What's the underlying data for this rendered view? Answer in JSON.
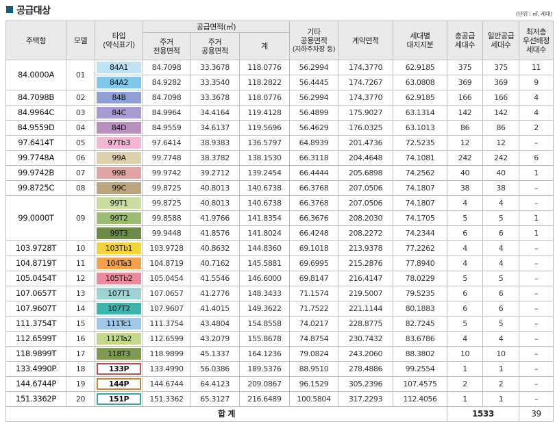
{
  "title": "공급대상",
  "unit_note": "(단위 : ㎡, 세대)",
  "headers": {
    "housing_type": "주택형",
    "model": "모델",
    "type_abbrev_l1": "타입",
    "type_abbrev_l2": "(약식표기)",
    "supply_area": "공급면적(㎡)",
    "excl_l1": "주거",
    "excl_l2": "전용면적",
    "shared_l1": "주거",
    "shared_l2": "공용면적",
    "total": "계",
    "other_l1": "기타",
    "other_l2": "공용면적",
    "other_l3": "(지하주차장 등)",
    "contract": "계약면적",
    "land_l1": "세대별",
    "land_l2": "대지지분",
    "total_units_l1": "총공급",
    "total_units_l2": "세대수",
    "general_l1": "일반공급",
    "general_l2": "세대수",
    "lowest_l1": "최저층",
    "lowest_l2": "우선배정",
    "lowest_l3": "세대수"
  },
  "groups": [
    {
      "type": "84.0000A",
      "model": "01",
      "rows": [
        {
          "abbr": "84A1",
          "color": "#bfe3f5",
          "excl": "84.7098",
          "shared": "33.3678",
          "total": "118.0776",
          "other": "56.2994",
          "contract": "174.3770",
          "land": "62.9185",
          "total_units": "375",
          "general": "375",
          "lowest": "11"
        },
        {
          "abbr": "84A2",
          "color": "#80c8ea",
          "excl": "84.9282",
          "shared": "33.3540",
          "total": "118.2822",
          "other": "56.4445",
          "contract": "174.7267",
          "land": "63.0808",
          "total_units": "369",
          "general": "369",
          "lowest": "9"
        }
      ]
    },
    {
      "type": "84.7098B",
      "model": "02",
      "rows": [
        {
          "abbr": "84B",
          "color": "#8ea0d6",
          "excl": "84.7098",
          "shared": "33.3678",
          "total": "118.0776",
          "other": "56.2994",
          "contract": "174.3770",
          "land": "62.9185",
          "total_units": "166",
          "general": "166",
          "lowest": "4"
        }
      ]
    },
    {
      "type": "84.9964C",
      "model": "03",
      "rows": [
        {
          "abbr": "84C",
          "color": "#a89ad2",
          "excl": "84.9964",
          "shared": "34.4164",
          "total": "119.4128",
          "other": "56.4899",
          "contract": "175.9027",
          "land": "63.1314",
          "total_units": "142",
          "general": "142",
          "lowest": "4"
        }
      ]
    },
    {
      "type": "84.9559D",
      "model": "04",
      "rows": [
        {
          "abbr": "84D",
          "color": "#b890bf",
          "excl": "84.9559",
          "shared": "34.6137",
          "total": "119.5696",
          "other": "56.4629",
          "contract": "176.0325",
          "land": "63.1013",
          "total_units": "86",
          "general": "86",
          "lowest": "2"
        }
      ]
    },
    {
      "type": "97.6414T",
      "model": "05",
      "rows": [
        {
          "abbr": "97Tb3",
          "color": "#f4b6d2",
          "excl": "97.6414",
          "shared": "38.9383",
          "total": "136.5797",
          "other": "64.8939",
          "contract": "201.4736",
          "land": "72.5235",
          "total_units": "12",
          "general": "12",
          "lowest": "–"
        }
      ]
    },
    {
      "type": "99.7748A",
      "model": "06",
      "rows": [
        {
          "abbr": "99A",
          "color": "#dcd1aa",
          "excl": "99.7748",
          "shared": "38.3782",
          "total": "138.1530",
          "other": "66.3118",
          "contract": "204.4648",
          "land": "74.1081",
          "total_units": "242",
          "general": "242",
          "lowest": "6"
        }
      ]
    },
    {
      "type": "99.9742B",
      "model": "07",
      "rows": [
        {
          "abbr": "99B",
          "color": "#e0a4a4",
          "excl": "99.9742",
          "shared": "39.2712",
          "total": "139.2454",
          "other": "66.4444",
          "contract": "205.6898",
          "land": "74.2562",
          "total_units": "40",
          "general": "40",
          "lowest": "1"
        }
      ]
    },
    {
      "type": "99.8725C",
      "model": "08",
      "rows": [
        {
          "abbr": "99C",
          "color": "#bba67d",
          "excl": "99.8725",
          "shared": "40.8013",
          "total": "140.6738",
          "other": "66.3768",
          "contract": "207.0506",
          "land": "74.1807",
          "total_units": "38",
          "general": "38",
          "lowest": "–"
        }
      ]
    },
    {
      "type": "99.0000T",
      "model": "09",
      "rows": [
        {
          "abbr": "99T1",
          "color": "#cbdca1",
          "excl": "99.8725",
          "shared": "40.8013",
          "total": "140.6738",
          "other": "66.3768",
          "contract": "207.0506",
          "land": "74.1807",
          "total_units": "4",
          "general": "4",
          "lowest": "–"
        },
        {
          "abbr": "99T2",
          "color": "#9cbd71",
          "excl": "99.8588",
          "shared": "41.9766",
          "total": "141.8354",
          "other": "66.3676",
          "contract": "208.2030",
          "land": "74.1705",
          "total_units": "5",
          "general": "5",
          "lowest": "1"
        },
        {
          "abbr": "99T3",
          "color": "#6d8b48",
          "excl": "99.9448",
          "shared": "41.8576",
          "total": "141.8024",
          "other": "66.4248",
          "contract": "208.2272",
          "land": "74.2344",
          "total_units": "6",
          "general": "6",
          "lowest": "1"
        }
      ]
    },
    {
      "type": "103.9728T",
      "model": "10",
      "rows": [
        {
          "abbr": "103Tb1",
          "color": "#f5d33a",
          "excl": "103.9728",
          "shared": "40.8632",
          "total": "144.8360",
          "other": "69.1018",
          "contract": "213.9378",
          "land": "77.2262",
          "total_units": "4",
          "general": "4",
          "lowest": "–"
        }
      ]
    },
    {
      "type": "104.8719T",
      "model": "11",
      "rows": [
        {
          "abbr": "104Ta3",
          "color": "#f1a24a",
          "excl": "104.8719",
          "shared": "40.7162",
          "total": "145.5881",
          "other": "69.6995",
          "contract": "215.2876",
          "land": "77.8940",
          "total_units": "4",
          "general": "4",
          "lowest": "–"
        }
      ]
    },
    {
      "type": "105.0454T",
      "model": "12",
      "rows": [
        {
          "abbr": "105Tb2",
          "color": "#ea8a9c",
          "excl": "105.0454",
          "shared": "41.5546",
          "total": "146.6000",
          "other": "69.8147",
          "contract": "216.4147",
          "land": "78.0229",
          "total_units": "5",
          "general": "5",
          "lowest": "–"
        }
      ]
    },
    {
      "type": "107.0657T",
      "model": "13",
      "rows": [
        {
          "abbr": "107T1",
          "color": "#9dd3d4",
          "excl": "107.0657",
          "shared": "41.2776",
          "total": "148.3433",
          "other": "71.1574",
          "contract": "219.5007",
          "land": "79.5235",
          "total_units": "6",
          "general": "6",
          "lowest": "–"
        }
      ]
    },
    {
      "type": "107.9607T",
      "model": "14",
      "rows": [
        {
          "abbr": "107T2",
          "color": "#3bb5ad",
          "excl": "107.9607",
          "shared": "41.4015",
          "total": "149.3622",
          "other": "71.7522",
          "contract": "221.1144",
          "land": "80.1883",
          "total_units": "6",
          "general": "6",
          "lowest": "–"
        }
      ]
    },
    {
      "type": "111.3754T",
      "model": "15",
      "rows": [
        {
          "abbr": "111Tc1",
          "color": "#9fc7e9",
          "excl": "111.3754",
          "shared": "43.4804",
          "total": "154.8558",
          "other": "74.0217",
          "contract": "228.8775",
          "land": "82.7245",
          "total_units": "5",
          "general": "5",
          "lowest": "–"
        }
      ]
    },
    {
      "type": "112.6599T",
      "model": "16",
      "rows": [
        {
          "abbr": "112Ta2",
          "color": "#c4d889",
          "excl": "112.6599",
          "shared": "43.2079",
          "total": "155.8678",
          "other": "74.8754",
          "contract": "230.7432",
          "land": "83.6786",
          "total_units": "4",
          "general": "4",
          "lowest": "–"
        }
      ]
    },
    {
      "type": "118.9899T",
      "model": "17",
      "rows": [
        {
          "abbr": "118T3",
          "color": "#7e9a4e",
          "excl": "118.9899",
          "shared": "45.1337",
          "total": "164.1236",
          "other": "79.0824",
          "contract": "243.2060",
          "land": "88.3802",
          "total_units": "10",
          "general": "10",
          "lowest": "–"
        }
      ]
    },
    {
      "type": "133.4990P",
      "model": "18",
      "rows": [
        {
          "abbr": "133P",
          "color": "#c0504d",
          "outlined": true,
          "excl": "133.4990",
          "shared": "56.0386",
          "total": "189.5376",
          "other": "88.9510",
          "contract": "278.4886",
          "land": "99.2554",
          "total_units": "1",
          "general": "1",
          "lowest": "–"
        }
      ]
    },
    {
      "type": "144.6744P",
      "model": "19",
      "rows": [
        {
          "abbr": "144P",
          "color": "#c8842e",
          "outlined": true,
          "excl": "144.6744",
          "shared": "64.4123",
          "total": "209.0867",
          "other": "96.1529",
          "contract": "305.2396",
          "land": "107.4575",
          "total_units": "2",
          "general": "2",
          "lowest": "–"
        }
      ]
    },
    {
      "type": "151.3362P",
      "model": "20",
      "rows": [
        {
          "abbr": "151P",
          "color": "#3aa6a0",
          "outlined": true,
          "excl": "151.3362",
          "shared": "65.3127",
          "total": "216.6489",
          "other": "100.5804",
          "contract": "317.2293",
          "land": "112.4056",
          "total_units": "1",
          "general": "1",
          "lowest": "–"
        }
      ]
    }
  ],
  "footer": {
    "label": "합 계",
    "total_units": "1533",
    "lowest": "39"
  }
}
